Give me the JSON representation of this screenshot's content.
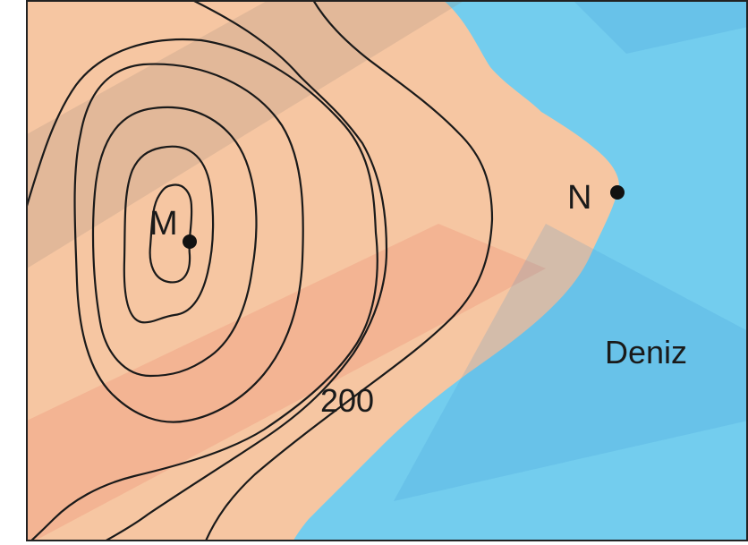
{
  "map": {
    "point_m_label": "M",
    "point_n_label": "N",
    "sea_label": "Deniz",
    "contour_label": "200",
    "colors": {
      "land": "#f6c6a2",
      "sea": "#73cdee",
      "frame": "#222222",
      "contour": "#1a1a1a",
      "watermark_gray": "#c9c9c9",
      "watermark_red": "#e85a46",
      "watermark_blue": "#3a8fd0"
    }
  }
}
